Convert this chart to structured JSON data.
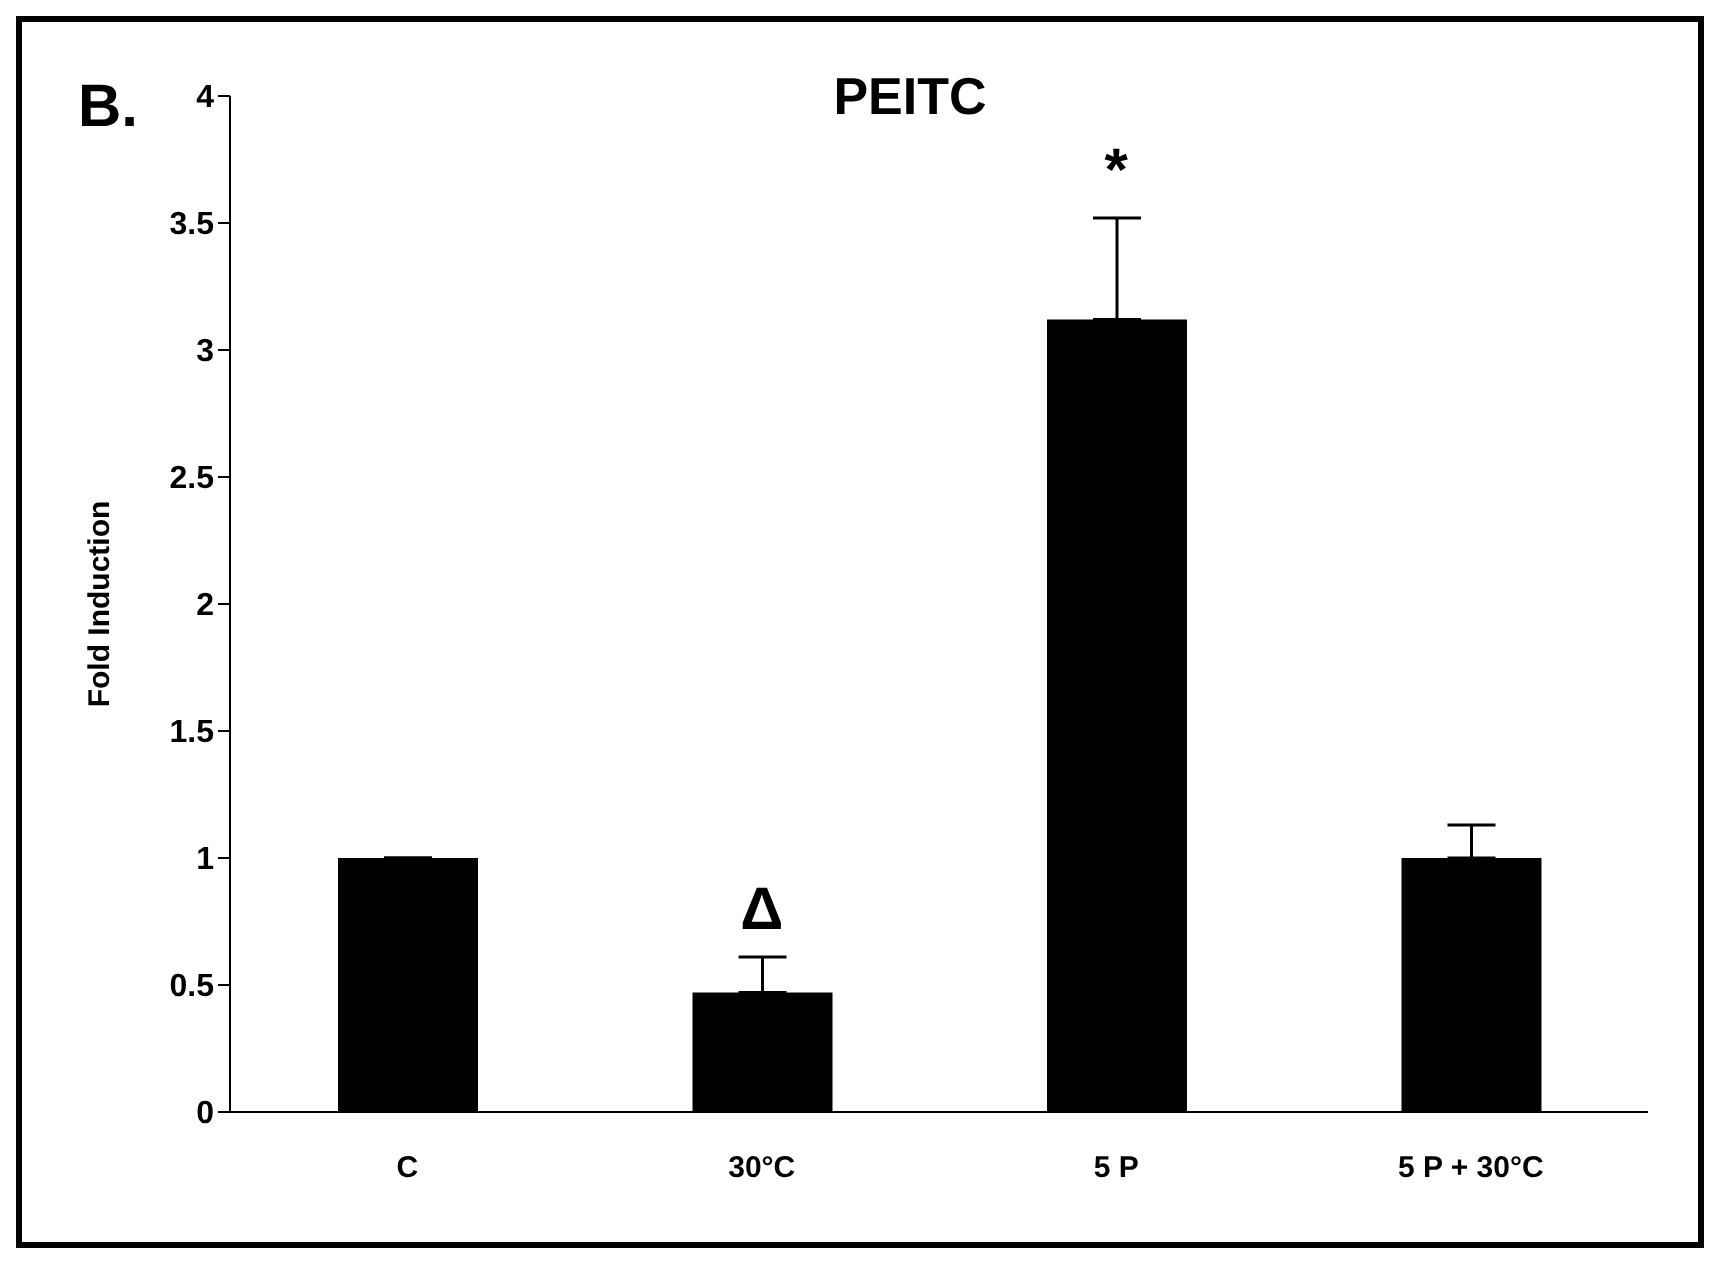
{
  "chart_data": {
    "type": "bar",
    "title": "PEITC",
    "ylabel": "Fold Induction",
    "categories": [
      "C",
      "30°C",
      "5 P",
      "5 P + 30°C"
    ],
    "values": [
      1,
      0.47,
      3.12,
      1.0
    ],
    "errors": [
      null,
      [
        0.47,
        0.61
      ],
      [
        3.12,
        3.52
      ],
      [
        1.0,
        1.13
      ]
    ],
    "color": "#000000",
    "ylim": [
      0,
      4
    ],
    "yticks": [
      0,
      0.5,
      1,
      1.5,
      2,
      2.5,
      3,
      3.5,
      4
    ],
    "grid": false,
    "legend": false,
    "annotations": [
      "B.",
      {
        "text": "Δ",
        "x": "30°C",
        "y": 0.61
      },
      {
        "text": "*",
        "x": "5 P",
        "y": 3.52
      }
    ]
  }
}
